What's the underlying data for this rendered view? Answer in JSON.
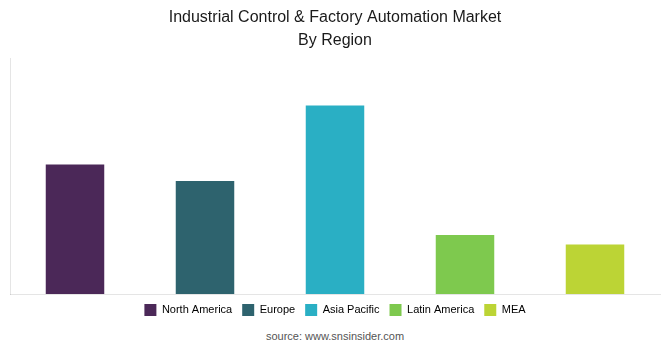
{
  "chart_data": {
    "type": "bar",
    "title": "Industrial Control & Factory Automation Market",
    "subtitle": "By Region",
    "source": "source: www.snsinsider.com",
    "categories": [
      "North America",
      "Europe",
      "Asia Pacific",
      "Latin America",
      "MEA"
    ],
    "values": [
      55,
      48,
      80,
      25,
      21
    ],
    "colors": [
      "#4b2858",
      "#2e636e",
      "#2aafc4",
      "#7ec94e",
      "#bcd435"
    ],
    "ylim": [
      0,
      100
    ],
    "grid": false,
    "legend": "bottom",
    "tick_labels": false
  }
}
